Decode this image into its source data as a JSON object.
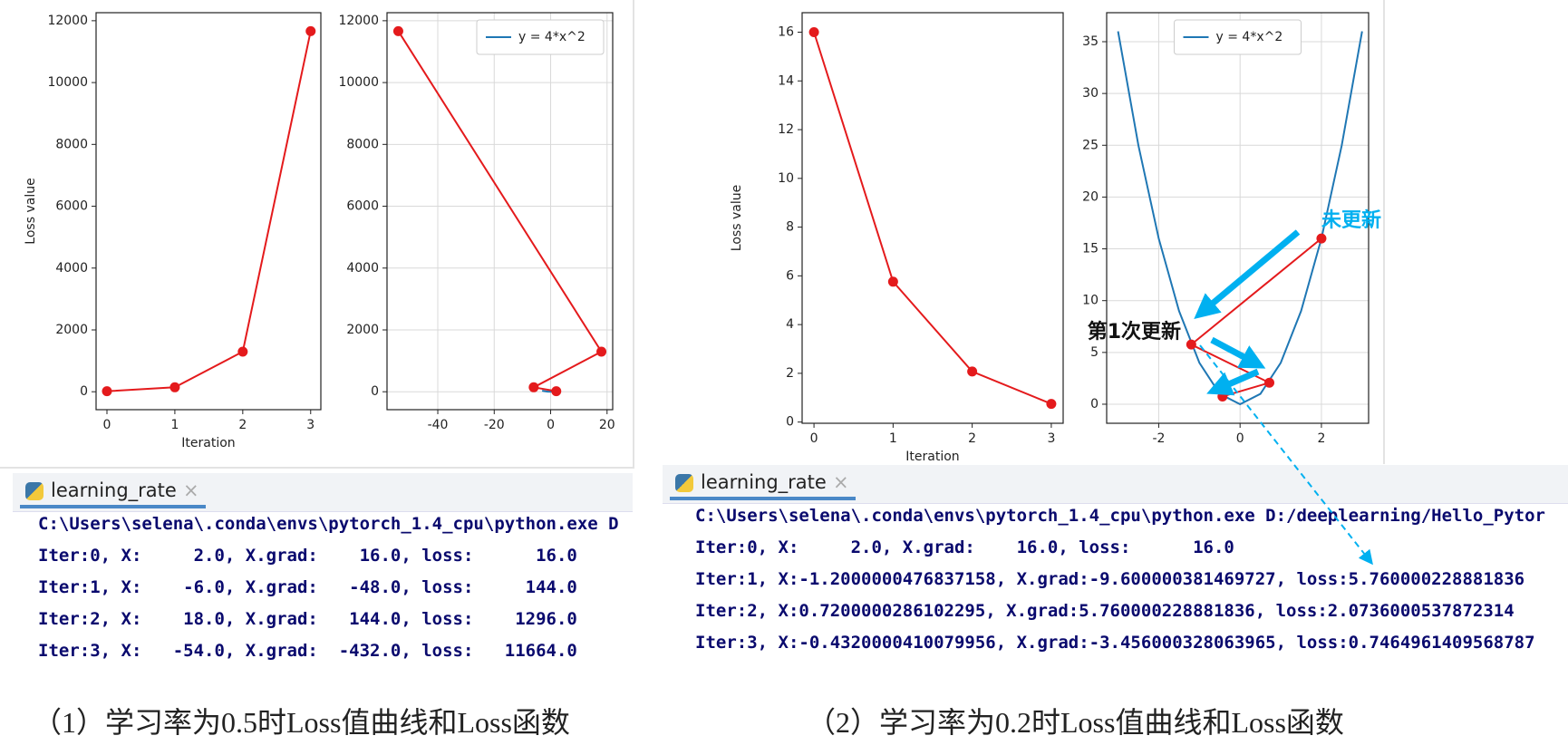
{
  "chart_data": [
    {
      "type": "line",
      "x": [
        0,
        1,
        2,
        3
      ],
      "series": [
        {
          "color": "#e41a1c",
          "markers": true,
          "values": [
            16,
            144,
            1296,
            11664
          ]
        }
      ],
      "xlim": [
        -0.16,
        3.15
      ],
      "xticks": [
        0,
        1,
        2,
        3
      ],
      "ylim": [
        -580,
        12260
      ],
      "yticks": [
        0,
        2000,
        4000,
        6000,
        8000,
        10000,
        12000
      ],
      "xlabel": "Iteration",
      "ylabel": "Loss value",
      "grid": false
    },
    {
      "type": "line",
      "series": [
        {
          "name": "y = 4*x^2",
          "color": "#1f77b4",
          "markers": false,
          "x": [
            -3,
            -2.5,
            -2,
            -1.5,
            -1,
            -0.5,
            0,
            0.5,
            1,
            1.5,
            2,
            2.5,
            3
          ],
          "values": [
            36,
            25,
            16,
            9,
            4,
            1,
            0,
            1,
            4,
            9,
            16,
            25,
            36
          ]
        },
        {
          "color": "#e41a1c",
          "markers": true,
          "x": [
            2,
            -6,
            18,
            -54
          ],
          "values": [
            16,
            144,
            1296,
            11664
          ]
        }
      ],
      "xlim": [
        -58,
        22
      ],
      "xticks": [
        -40,
        -20,
        0,
        20
      ],
      "ylim": [
        -580,
        12260
      ],
      "yticks": [
        0,
        2000,
        4000,
        6000,
        8000,
        10000,
        12000
      ],
      "grid": true,
      "legend": "upper right"
    },
    {
      "type": "line",
      "x": [
        0,
        1,
        2,
        3
      ],
      "series": [
        {
          "color": "#e41a1c",
          "markers": true,
          "values": [
            16,
            5.76,
            2.0736,
            0.7465
          ]
        }
      ],
      "xlim": [
        -0.15,
        3.15
      ],
      "xticks": [
        0,
        1,
        2,
        3
      ],
      "ylim": [
        -0.05,
        16.8
      ],
      "yticks": [
        0,
        2,
        4,
        6,
        8,
        10,
        12,
        14,
        16
      ],
      "xlabel": "Iteration",
      "ylabel": "Loss value",
      "grid": false
    },
    {
      "type": "line",
      "series": [
        {
          "name": "y = 4*x^2",
          "color": "#1f77b4",
          "markers": false,
          "x": [
            -3,
            -2.5,
            -2,
            -1.5,
            -1,
            -0.5,
            0,
            0.5,
            1,
            1.5,
            2,
            2.5,
            3
          ],
          "values": [
            36,
            25,
            16,
            9,
            4,
            1,
            0,
            1,
            4,
            9,
            16,
            25,
            36
          ]
        },
        {
          "color": "#e41a1c",
          "markers": true,
          "x": [
            2,
            -1.2,
            0.72,
            -0.432
          ],
          "values": [
            16,
            5.76,
            2.0736,
            0.7465
          ]
        }
      ],
      "xlim": [
        -3.28,
        3.16
      ],
      "xticks": [
        -2,
        0,
        2
      ],
      "ylim": [
        -1.84,
        37.8
      ],
      "yticks": [
        0,
        5,
        10,
        15,
        20,
        25,
        30,
        35
      ],
      "grid": true,
      "legend": "upper center",
      "annotations": [
        "未更新",
        "第1次更新"
      ]
    }
  ],
  "consoles": [
    {
      "tab": "learning_rate",
      "lines": [
        "C:\\Users\\selena\\.conda\\envs\\pytorch_1.4_cpu\\python.exe D",
        "Iter:0, X:     2.0, X.grad:    16.0, loss:      16.0",
        "Iter:1, X:    -6.0, X.grad:   -48.0, loss:     144.0",
        "Iter:2, X:    18.0, X.grad:   144.0, loss:    1296.0",
        "Iter:3, X:   -54.0, X.grad:  -432.0, loss:   11664.0"
      ]
    },
    {
      "tab": "learning_rate",
      "lines": [
        "C:\\Users\\selena\\.conda\\envs\\pytorch_1.4_cpu\\python.exe D:/deeplearning/Hello_Pytor",
        "Iter:0, X:     2.0, X.grad:    16.0, loss:      16.0",
        "Iter:1, X:-1.2000000476837158, X.grad:-9.600000381469727, loss:5.760000228881836",
        "Iter:2, X:0.7200000286102295, X.grad:5.760000228881836, loss:2.0736000537872314",
        "Iter:3, X:-0.4320000410079956, X.grad:-3.456000328063965, loss:0.7464961409568787"
      ]
    }
  ],
  "captions": [
    "（1）学习率为0.5时Loss值曲线和Loss函数",
    "（2）学习率为0.2时Loss值曲线和Loss函数"
  ]
}
